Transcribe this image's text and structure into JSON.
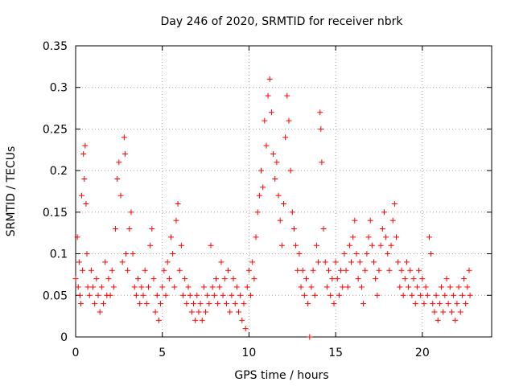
{
  "chart_data": {
    "type": "scatter",
    "title": "Day 246 of 2020, SRMTID for receiver nbrk",
    "xlabel": "GPS time / hours",
    "ylabel": "SRMTID / TECUs",
    "xlim": [
      0,
      24
    ],
    "ylim": [
      0,
      0.35
    ],
    "xticks": [
      0,
      5,
      10,
      15,
      20
    ],
    "xtick_labels": [
      "0",
      "5",
      "10",
      "15",
      "20"
    ],
    "yticks": [
      0,
      0.05,
      0.1,
      0.15,
      0.2,
      0.25,
      0.3,
      0.35
    ],
    "ytick_labels": [
      "0",
      "0.05",
      "0.1",
      "0.15",
      "0.2",
      "0.25",
      "0.3",
      "0.35"
    ],
    "grid": true,
    "marker": "+",
    "color": "#ff0000",
    "series": [
      {
        "name": "SRMTID",
        "points": [
          [
            0.0,
            0.07
          ],
          [
            0.1,
            0.12
          ],
          [
            0.15,
            0.06
          ],
          [
            0.2,
            0.09
          ],
          [
            0.25,
            0.05
          ],
          [
            0.3,
            0.04
          ],
          [
            0.35,
            0.17
          ],
          [
            0.4,
            0.08
          ],
          [
            0.45,
            0.22
          ],
          [
            0.5,
            0.19
          ],
          [
            0.55,
            0.23
          ],
          [
            0.6,
            0.16
          ],
          [
            0.65,
            0.1
          ],
          [
            0.7,
            0.06
          ],
          [
            0.8,
            0.05
          ],
          [
            0.9,
            0.08
          ],
          [
            1.0,
            0.06
          ],
          [
            1.1,
            0.04
          ],
          [
            1.2,
            0.07
          ],
          [
            1.3,
            0.05
          ],
          [
            1.4,
            0.03
          ],
          [
            1.5,
            0.06
          ],
          [
            1.6,
            0.04
          ],
          [
            1.7,
            0.09
          ],
          [
            1.8,
            0.05
          ],
          [
            1.9,
            0.07
          ],
          [
            2.0,
            0.05
          ],
          [
            2.1,
            0.08
          ],
          [
            2.2,
            0.06
          ],
          [
            2.3,
            0.13
          ],
          [
            2.4,
            0.19
          ],
          [
            2.5,
            0.21
          ],
          [
            2.6,
            0.17
          ],
          [
            2.7,
            0.09
          ],
          [
            2.8,
            0.24
          ],
          [
            2.85,
            0.22
          ],
          [
            2.9,
            0.1
          ],
          [
            3.0,
            0.08
          ],
          [
            3.1,
            0.13
          ],
          [
            3.2,
            0.15
          ],
          [
            3.3,
            0.1
          ],
          [
            3.4,
            0.06
          ],
          [
            3.5,
            0.05
          ],
          [
            3.6,
            0.07
          ],
          [
            3.7,
            0.04
          ],
          [
            3.8,
            0.06
          ],
          [
            3.9,
            0.05
          ],
          [
            4.0,
            0.08
          ],
          [
            4.1,
            0.04
          ],
          [
            4.2,
            0.06
          ],
          [
            4.3,
            0.11
          ],
          [
            4.4,
            0.13
          ],
          [
            4.5,
            0.07
          ],
          [
            4.6,
            0.03
          ],
          [
            4.7,
            0.05
          ],
          [
            4.8,
            0.02
          ],
          [
            4.9,
            0.04
          ],
          [
            5.0,
            0.06
          ],
          [
            5.1,
            0.08
          ],
          [
            5.2,
            0.05
          ],
          [
            5.3,
            0.09
          ],
          [
            5.4,
            0.07
          ],
          [
            5.5,
            0.12
          ],
          [
            5.6,
            0.1
          ],
          [
            5.7,
            0.06
          ],
          [
            5.8,
            0.14
          ],
          [
            5.9,
            0.16
          ],
          [
            6.0,
            0.08
          ],
          [
            6.1,
            0.11
          ],
          [
            6.2,
            0.05
          ],
          [
            6.3,
            0.07
          ],
          [
            6.4,
            0.04
          ],
          [
            6.5,
            0.06
          ],
          [
            6.6,
            0.05
          ],
          [
            6.7,
            0.03
          ],
          [
            6.8,
            0.04
          ],
          [
            6.9,
            0.02
          ],
          [
            7.0,
            0.05
          ],
          [
            7.1,
            0.03
          ],
          [
            7.2,
            0.04
          ],
          [
            7.3,
            0.02
          ],
          [
            7.4,
            0.06
          ],
          [
            7.5,
            0.03
          ],
          [
            7.6,
            0.05
          ],
          [
            7.7,
            0.04
          ],
          [
            7.8,
            0.11
          ],
          [
            7.9,
            0.06
          ],
          [
            8.0,
            0.05
          ],
          [
            8.1,
            0.07
          ],
          [
            8.2,
            0.04
          ],
          [
            8.3,
            0.06
          ],
          [
            8.4,
            0.09
          ],
          [
            8.5,
            0.05
          ],
          [
            8.6,
            0.07
          ],
          [
            8.7,
            0.04
          ],
          [
            8.8,
            0.08
          ],
          [
            8.9,
            0.03
          ],
          [
            9.0,
            0.05
          ],
          [
            9.1,
            0.07
          ],
          [
            9.2,
            0.04
          ],
          [
            9.3,
            0.06
          ],
          [
            9.4,
            0.03
          ],
          [
            9.5,
            0.05
          ],
          [
            9.6,
            0.02
          ],
          [
            9.7,
            0.04
          ],
          [
            9.8,
            0.01
          ],
          [
            9.9,
            0.06
          ],
          [
            10.0,
            0.08
          ],
          [
            10.1,
            0.05
          ],
          [
            10.2,
            0.09
          ],
          [
            10.3,
            0.07
          ],
          [
            10.4,
            0.12
          ],
          [
            10.5,
            0.15
          ],
          [
            10.6,
            0.17
          ],
          [
            10.7,
            0.2
          ],
          [
            10.8,
            0.18
          ],
          [
            10.9,
            0.26
          ],
          [
            11.0,
            0.23
          ],
          [
            11.1,
            0.29
          ],
          [
            11.2,
            0.31
          ],
          [
            11.3,
            0.27
          ],
          [
            11.4,
            0.22
          ],
          [
            11.5,
            0.19
          ],
          [
            11.6,
            0.21
          ],
          [
            11.7,
            0.17
          ],
          [
            11.8,
            0.14
          ],
          [
            11.9,
            0.11
          ],
          [
            12.0,
            0.16
          ],
          [
            12.1,
            0.24
          ],
          [
            12.2,
            0.29
          ],
          [
            12.3,
            0.26
          ],
          [
            12.4,
            0.2
          ],
          [
            12.5,
            0.15
          ],
          [
            12.6,
            0.13
          ],
          [
            12.7,
            0.11
          ],
          [
            12.8,
            0.08
          ],
          [
            12.9,
            0.1
          ],
          [
            13.0,
            0.06
          ],
          [
            13.1,
            0.08
          ],
          [
            13.2,
            0.05
          ],
          [
            13.3,
            0.07
          ],
          [
            13.4,
            0.04
          ],
          [
            13.5,
            0.0
          ],
          [
            13.6,
            0.06
          ],
          [
            13.7,
            0.08
          ],
          [
            13.8,
            0.05
          ],
          [
            13.9,
            0.11
          ],
          [
            14.0,
            0.09
          ],
          [
            14.1,
            0.27
          ],
          [
            14.15,
            0.25
          ],
          [
            14.2,
            0.21
          ],
          [
            14.3,
            0.13
          ],
          [
            14.4,
            0.09
          ],
          [
            14.5,
            0.06
          ],
          [
            14.6,
            0.08
          ],
          [
            14.7,
            0.05
          ],
          [
            14.8,
            0.07
          ],
          [
            14.9,
            0.04
          ],
          [
            15.0,
            0.09
          ],
          [
            15.1,
            0.07
          ],
          [
            15.2,
            0.05
          ],
          [
            15.3,
            0.08
          ],
          [
            15.4,
            0.06
          ],
          [
            15.5,
            0.1
          ],
          [
            15.6,
            0.08
          ],
          [
            15.7,
            0.06
          ],
          [
            15.8,
            0.11
          ],
          [
            15.9,
            0.09
          ],
          [
            16.0,
            0.12
          ],
          [
            16.1,
            0.14
          ],
          [
            16.2,
            0.1
          ],
          [
            16.3,
            0.07
          ],
          [
            16.4,
            0.09
          ],
          [
            16.5,
            0.06
          ],
          [
            16.6,
            0.04
          ],
          [
            16.7,
            0.08
          ],
          [
            16.8,
            0.1
          ],
          [
            16.9,
            0.12
          ],
          [
            17.0,
            0.14
          ],
          [
            17.1,
            0.11
          ],
          [
            17.2,
            0.09
          ],
          [
            17.3,
            0.07
          ],
          [
            17.4,
            0.05
          ],
          [
            17.5,
            0.08
          ],
          [
            17.6,
            0.11
          ],
          [
            17.7,
            0.13
          ],
          [
            17.8,
            0.15
          ],
          [
            17.9,
            0.12
          ],
          [
            18.0,
            0.1
          ],
          [
            18.1,
            0.08
          ],
          [
            18.2,
            0.11
          ],
          [
            18.3,
            0.14
          ],
          [
            18.4,
            0.16
          ],
          [
            18.5,
            0.12
          ],
          [
            18.6,
            0.09
          ],
          [
            18.7,
            0.06
          ],
          [
            18.8,
            0.08
          ],
          [
            18.9,
            0.05
          ],
          [
            19.0,
            0.07
          ],
          [
            19.1,
            0.09
          ],
          [
            19.2,
            0.06
          ],
          [
            19.3,
            0.08
          ],
          [
            19.4,
            0.05
          ],
          [
            19.5,
            0.07
          ],
          [
            19.6,
            0.04
          ],
          [
            19.7,
            0.06
          ],
          [
            19.8,
            0.08
          ],
          [
            19.9,
            0.05
          ],
          [
            20.0,
            0.07
          ],
          [
            20.1,
            0.04
          ],
          [
            20.2,
            0.06
          ],
          [
            20.3,
            0.05
          ],
          [
            20.4,
            0.12
          ],
          [
            20.5,
            0.1
          ],
          [
            20.6,
            0.04
          ],
          [
            20.7,
            0.03
          ],
          [
            20.8,
            0.05
          ],
          [
            20.9,
            0.02
          ],
          [
            21.0,
            0.04
          ],
          [
            21.1,
            0.06
          ],
          [
            21.2,
            0.03
          ],
          [
            21.3,
            0.05
          ],
          [
            21.4,
            0.07
          ],
          [
            21.5,
            0.04
          ],
          [
            21.6,
            0.06
          ],
          [
            21.7,
            0.03
          ],
          [
            21.8,
            0.05
          ],
          [
            21.9,
            0.02
          ],
          [
            22.0,
            0.04
          ],
          [
            22.1,
            0.06
          ],
          [
            22.2,
            0.03
          ],
          [
            22.3,
            0.05
          ],
          [
            22.4,
            0.07
          ],
          [
            22.5,
            0.04
          ],
          [
            22.6,
            0.06
          ],
          [
            22.7,
            0.08
          ],
          [
            22.75,
            0.05
          ]
        ]
      }
    ]
  }
}
